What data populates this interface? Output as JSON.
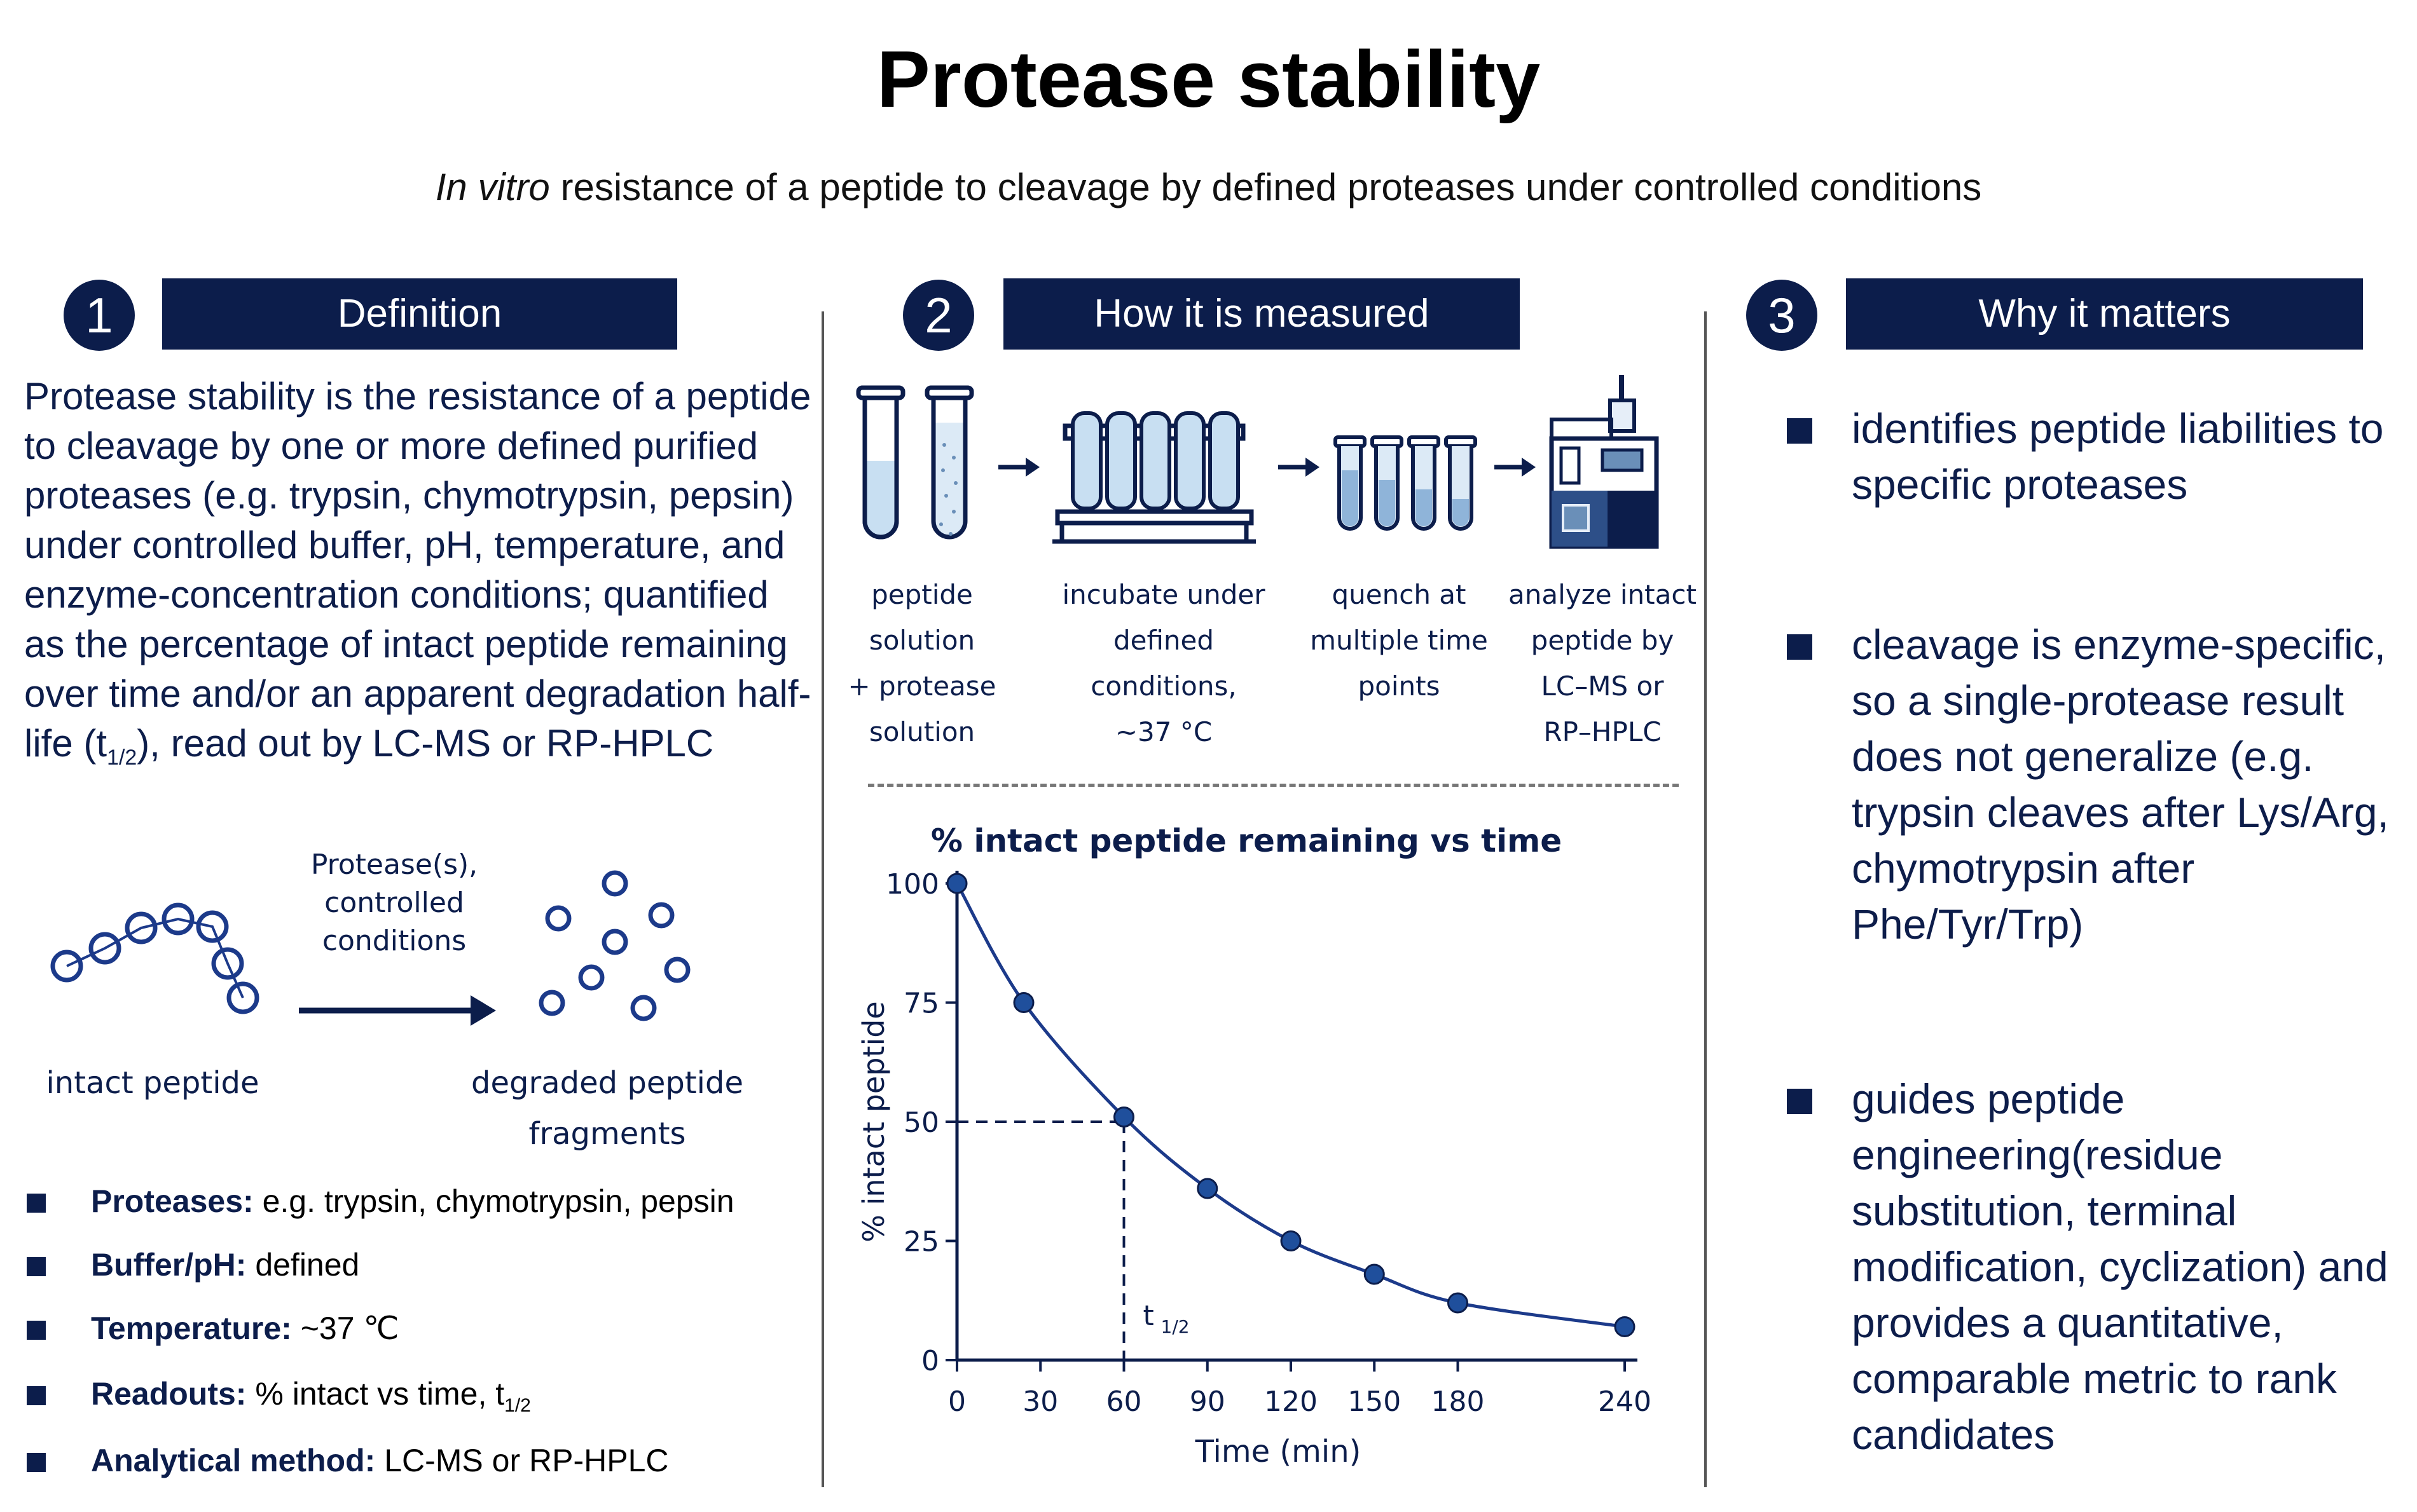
{
  "header": {
    "title": "Protease stability",
    "subtitle_italic": "In vitro",
    "subtitle_rest": " resistance of a peptide to cleavage by defined proteases under controlled conditions"
  },
  "sections": [
    {
      "number": "1",
      "title": "Definition"
    },
    {
      "number": "2",
      "title": "How it is measured"
    },
    {
      "number": "3",
      "title": "Why it matters"
    }
  ],
  "definition": {
    "text_before": "Protease stability is the resistance of a peptide to cleavage by one or more defined purified proteases (e.g. trypsin, chymotrypsin, pepsin) under controlled buffer, pH, temperature, and enzyme-concentration conditions; quantified as the percentage of intact peptide remaining over time and/or an apparent degradation half-life (t",
    "text_after": "), read out by LC-MS or RP-HPLC",
    "halflife_sub": "1/2"
  },
  "peptide_diagram": {
    "arrow_label": [
      "Protease(s),",
      "controlled",
      "conditions"
    ],
    "left_label": "intact peptide",
    "right_label": [
      "degraded peptide",
      "fragments"
    ]
  },
  "bullets": [
    {
      "label": "Proteases:",
      "value": " e.g. trypsin, chymotrypsin, pepsin"
    },
    {
      "label": "Buffer/pH:",
      "value": " defined"
    },
    {
      "label": "Temperature:",
      "value": " ~37 ℃"
    },
    {
      "label": "Readouts:",
      "value": " % intact vs time, t",
      "sub": "1/2"
    },
    {
      "label": "Analytical method:",
      "value": " LC-MS or RP-HPLC"
    }
  ],
  "steps": [
    {
      "label": [
        "peptide solution",
        "+ protease",
        "solution"
      ]
    },
    {
      "label": [
        "incubate under",
        "defined conditions,",
        "~37 °C"
      ]
    },
    {
      "label": [
        "quench at",
        "multiple time",
        "points"
      ]
    },
    {
      "label": [
        "analyze intact",
        "peptide by",
        "LC–MS or",
        "RP–HPLC"
      ]
    }
  ],
  "why": [
    "identifies peptide liabilities to specific proteases",
    "cleavage is enzyme-specific, so a single-protease result does not generalize (e.g. trypsin cleaves after Lys/Arg, chymotrypsin after Phe/Tyr/Trp)",
    "guides peptide engineering(residue substitution, terminal modification, cyclization) and provides a quantitative, comparable metric to rank candidates"
  ],
  "chart_data": {
    "type": "line",
    "title": "% intact peptide remaining vs time",
    "xlabel": "Time (min)",
    "ylabel": "% intact peptide",
    "x": [
      0,
      24,
      60,
      90,
      120,
      150,
      180,
      240
    ],
    "values": [
      100,
      75,
      51,
      36,
      25,
      18,
      12,
      7
    ],
    "xticks": [
      0,
      30,
      60,
      90,
      120,
      150,
      180,
      240
    ],
    "yticks": [
      0,
      25,
      50,
      75,
      100
    ],
    "xlim": [
      0,
      240
    ],
    "ylim": [
      0,
      100
    ],
    "halflife": {
      "x": 60,
      "y": 50,
      "label": "t",
      "sub": "1/2"
    },
    "color": "#1c3a8a",
    "grid": false
  }
}
